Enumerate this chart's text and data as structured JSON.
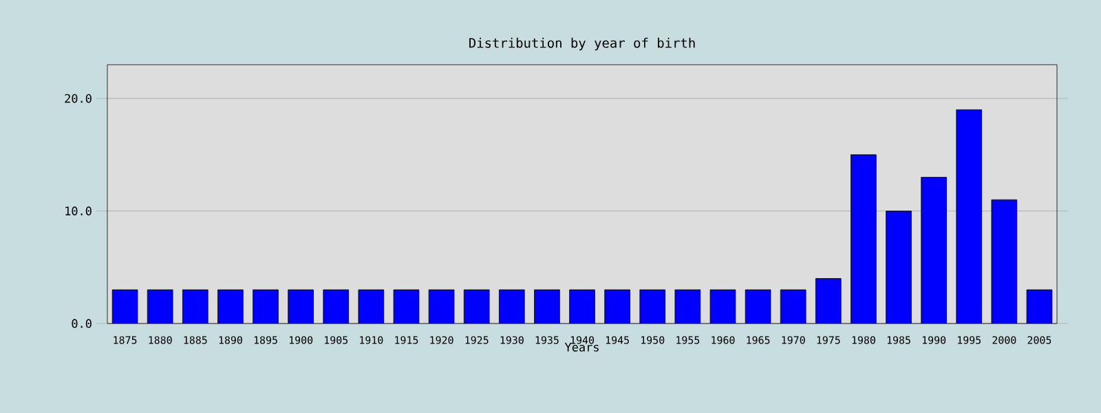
{
  "chart_data": {
    "type": "bar",
    "title": "Distribution by year of birth",
    "xlabel": "Years",
    "categories": [
      "1875",
      "1880",
      "1885",
      "1890",
      "1895",
      "1900",
      "1905",
      "1910",
      "1915",
      "1920",
      "1925",
      "1930",
      "1935",
      "1940",
      "1945",
      "1950",
      "1955",
      "1960",
      "1965",
      "1970",
      "1975",
      "1980",
      "1985",
      "1990",
      "1995",
      "2000",
      "2005"
    ],
    "values": [
      3,
      3,
      3,
      3,
      3,
      3,
      3,
      3,
      3,
      3,
      3,
      3,
      3,
      3,
      3,
      3,
      3,
      3,
      3,
      3,
      4,
      15,
      10,
      13,
      19,
      11,
      3
    ],
    "color": "#0000ff",
    "ylim": [
      0,
      23
    ],
    "yticks": [
      {
        "value": 0,
        "label": "0.0"
      },
      {
        "value": 10,
        "label": "10.0"
      },
      {
        "value": 20,
        "label": "20.0"
      }
    ],
    "grid": "y"
  }
}
